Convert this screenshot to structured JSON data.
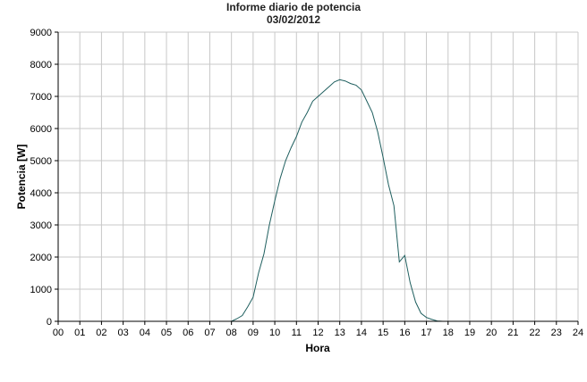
{
  "chart_data": {
    "type": "line",
    "title": "Informe diario de potencia",
    "subtitle": "03/02/2012",
    "xlabel": "Hora",
    "ylabel": "Potencia [W]",
    "xlim": [
      0,
      24
    ],
    "ylim": [
      0,
      9000
    ],
    "grid": true,
    "line_color": "#1f5f5f",
    "x_ticks": [
      "00",
      "01",
      "02",
      "03",
      "04",
      "05",
      "06",
      "07",
      "08",
      "09",
      "10",
      "11",
      "12",
      "13",
      "14",
      "15",
      "16",
      "17",
      "18",
      "19",
      "20",
      "21",
      "22",
      "23",
      "24"
    ],
    "y_ticks": [
      "0",
      "1000",
      "2000",
      "3000",
      "4000",
      "5000",
      "6000",
      "7000",
      "8000",
      "9000"
    ],
    "series": [
      {
        "x": [
          8.0,
          8.25,
          8.5,
          8.75,
          9.0,
          9.25,
          9.5,
          9.75,
          10.0,
          10.25,
          10.5,
          10.75,
          11.0,
          11.25,
          11.5,
          11.75,
          12.0,
          12.25,
          12.5,
          12.75,
          13.0,
          13.25,
          13.5,
          13.75,
          14.0,
          14.25,
          14.5,
          14.75,
          15.0,
          15.25,
          15.5,
          15.75,
          16.0,
          16.25,
          16.5,
          16.75,
          17.0,
          17.25,
          17.5,
          17.75
        ],
        "values": [
          0,
          80,
          180,
          450,
          750,
          1500,
          2100,
          3000,
          3750,
          4450,
          5000,
          5400,
          5750,
          6200,
          6500,
          6850,
          7000,
          7150,
          7300,
          7450,
          7520,
          7480,
          7400,
          7350,
          7200,
          6850,
          6500,
          5900,
          5100,
          4250,
          3600,
          1850,
          2050,
          1200,
          600,
          250,
          120,
          60,
          10,
          0
        ]
      }
    ]
  }
}
